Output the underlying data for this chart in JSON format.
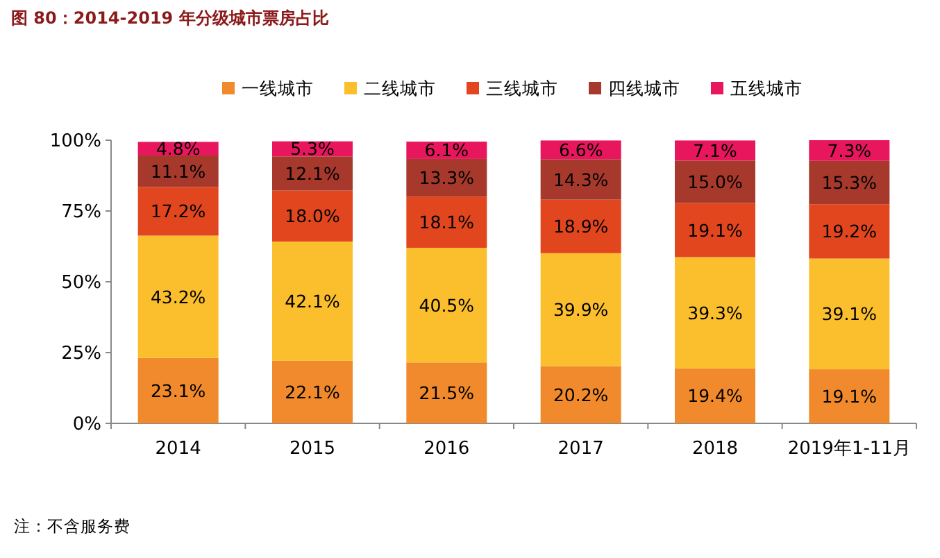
{
  "chart_data": {
    "type": "bar",
    "title": "图 80：2014-2019 年分级城市票房占比",
    "stacked": true,
    "legend": "top",
    "categories": [
      "2014",
      "2015",
      "2016",
      "2017",
      "2018",
      "2019年1-11月"
    ],
    "ylim": [
      0,
      100
    ],
    "yticks": [
      {
        "value": 0,
        "label": "0%"
      },
      {
        "value": 25,
        "label": "25%"
      },
      {
        "value": 50,
        "label": "50%"
      },
      {
        "value": 75,
        "label": "75%"
      },
      {
        "value": 100,
        "label": "100%"
      }
    ],
    "series": [
      {
        "name": "一线城市",
        "color": "#f08a2c",
        "values": [
          23.1,
          22.1,
          21.5,
          20.2,
          19.4,
          19.1
        ],
        "value_labels": [
          "23.1%",
          "22.1%",
          "21.5%",
          "20.2%",
          "19.4%",
          "19.1%"
        ]
      },
      {
        "name": "二线城市",
        "color": "#fbbf2e",
        "values": [
          43.2,
          42.1,
          40.5,
          39.9,
          39.3,
          39.1
        ],
        "value_labels": [
          "43.2%",
          "42.1%",
          "40.5%",
          "39.9%",
          "39.3%",
          "39.1%"
        ]
      },
      {
        "name": "三线城市",
        "color": "#e2461f",
        "values": [
          17.2,
          18.0,
          18.1,
          18.9,
          19.1,
          19.2
        ],
        "value_labels": [
          "17.2%",
          "18.0%",
          "18.1%",
          "18.9%",
          "19.1%",
          "19.2%"
        ]
      },
      {
        "name": "四线城市",
        "color": "#a6392c",
        "values": [
          11.1,
          12.1,
          13.3,
          14.3,
          15.0,
          15.3
        ],
        "value_labels": [
          "11.1%",
          "12.1%",
          "13.3%",
          "14.3%",
          "15.0%",
          "15.3%"
        ]
      },
      {
        "name": "五线城市",
        "color": "#e8175d",
        "values": [
          4.8,
          5.3,
          6.1,
          6.6,
          7.1,
          7.3
        ],
        "value_labels": [
          "4.8%",
          "5.3%",
          "6.1%",
          "6.6%",
          "7.1%",
          "7.3%"
        ]
      }
    ],
    "annotations": [
      "注：不含服务费"
    ]
  }
}
